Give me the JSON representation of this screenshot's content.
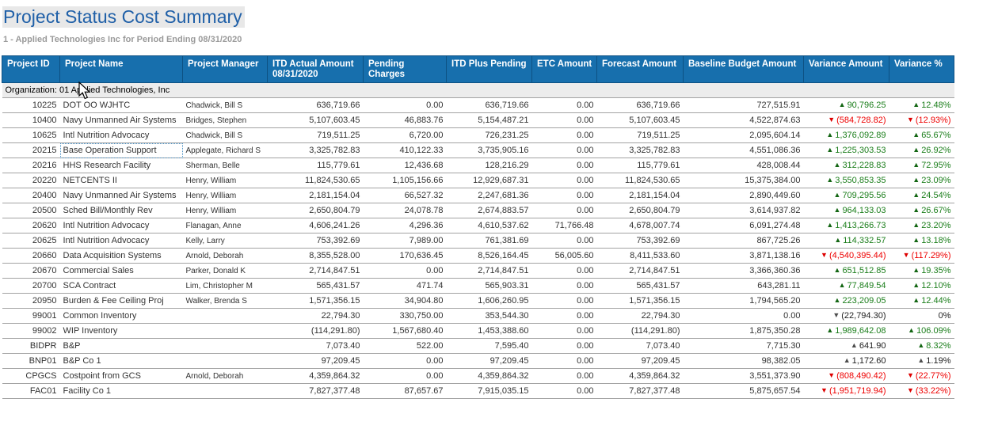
{
  "page": {
    "title": "Project Status Cost Summary",
    "subtitle": "1 - Applied Technologies Inc for Period Ending 08/31/2020"
  },
  "icons": {
    "up_arrow": "▲",
    "down_arrow": "▼",
    "mouse_cursor": "arrow-pointer"
  },
  "colors": {
    "header_bg": "#176fad",
    "positive": "#1b7e1b",
    "negative": "#ee0000",
    "neutral": "#222222",
    "title": "#2060a8"
  },
  "table": {
    "group_label": "Organization: 01 Applied Technologies, Inc",
    "columns": [
      {
        "key": "project-id",
        "label": "Project ID"
      },
      {
        "key": "project-name",
        "label": "Project Name"
      },
      {
        "key": "project-manager",
        "label": "Project Manager"
      },
      {
        "key": "itd-actual-amount",
        "label": "ITD Actual Amount\n08/31/2020"
      },
      {
        "key": "pending-charges",
        "label": "Pending Charges"
      },
      {
        "key": "itd-plus-pending",
        "label": "ITD Plus Pending"
      },
      {
        "key": "etc-amount",
        "label": "ETC Amount"
      },
      {
        "key": "forecast-amount",
        "label": "Forecast Amount"
      },
      {
        "key": "baseline-budget-amount",
        "label": "Baseline Budget Amount"
      },
      {
        "key": "variance-amount",
        "label": "Variance Amount"
      },
      {
        "key": "variance-pct",
        "label": "Variance %"
      }
    ],
    "rows": [
      {
        "id": "10225",
        "name": "DOT OO WJHTC",
        "manager": "Chadwick, Bill S",
        "itd_actual": "636,719.66",
        "pending": "0.00",
        "itd_plus_pending": "636,719.66",
        "etc": "0.00",
        "forecast": "636,719.66",
        "baseline": "727,515.91",
        "var_amt": {
          "arrow": "up",
          "value": "90,796.25",
          "color": "green"
        },
        "var_pct": {
          "arrow": "up",
          "value": "12.48%",
          "color": "green"
        }
      },
      {
        "id": "10400",
        "name": "Navy Unmanned Air Systems",
        "manager": "Bridges, Stephen",
        "itd_actual": "5,107,603.45",
        "pending": "46,883.76",
        "itd_plus_pending": "5,154,487.21",
        "etc": "0.00",
        "forecast": "5,107,603.45",
        "baseline": "4,522,874.63",
        "var_amt": {
          "arrow": "down",
          "value": "(584,728.82)",
          "color": "red"
        },
        "var_pct": {
          "arrow": "down",
          "value": "(12.93%)",
          "color": "red"
        }
      },
      {
        "id": "10625",
        "name": "Intl Nutrition Advocacy",
        "manager": "Chadwick, Bill S",
        "itd_actual": "719,511.25",
        "pending": "6,720.00",
        "itd_plus_pending": "726,231.25",
        "etc": "0.00",
        "forecast": "719,511.25",
        "baseline": "2,095,604.14",
        "var_amt": {
          "arrow": "up",
          "value": "1,376,092.89",
          "color": "green"
        },
        "var_pct": {
          "arrow": "up",
          "value": "65.67%",
          "color": "green"
        }
      },
      {
        "id": "20215",
        "name": "Base Operation Support",
        "name_focused": true,
        "manager": "Applegate, Richard S",
        "itd_actual": "3,325,782.83",
        "pending": "410,122.33",
        "itd_plus_pending": "3,735,905.16",
        "etc": "0.00",
        "forecast": "3,325,782.83",
        "baseline": "4,551,086.36",
        "var_amt": {
          "arrow": "up",
          "value": "1,225,303.53",
          "color": "green"
        },
        "var_pct": {
          "arrow": "up",
          "value": "26.92%",
          "color": "green"
        }
      },
      {
        "id": "20216",
        "name": "HHS Research Facility",
        "manager": "Sherman, Belle",
        "itd_actual": "115,779.61",
        "pending": "12,436.68",
        "itd_plus_pending": "128,216.29",
        "etc": "0.00",
        "forecast": "115,779.61",
        "baseline": "428,008.44",
        "var_amt": {
          "arrow": "up",
          "value": "312,228.83",
          "color": "green"
        },
        "var_pct": {
          "arrow": "up",
          "value": "72.95%",
          "color": "green"
        }
      },
      {
        "id": "20220",
        "name": "NETCENTS II",
        "manager": "Henry, William",
        "itd_actual": "11,824,530.65",
        "pending": "1,105,156.66",
        "itd_plus_pending": "12,929,687.31",
        "etc": "0.00",
        "forecast": "11,824,530.65",
        "baseline": "15,375,384.00",
        "var_amt": {
          "arrow": "up",
          "value": "3,550,853.35",
          "color": "green"
        },
        "var_pct": {
          "arrow": "up",
          "value": "23.09%",
          "color": "green"
        }
      },
      {
        "id": "20400",
        "name": "Navy Unmanned Air Systems",
        "manager": "Henry, William",
        "itd_actual": "2,181,154.04",
        "pending": "66,527.32",
        "itd_plus_pending": "2,247,681.36",
        "etc": "0.00",
        "forecast": "2,181,154.04",
        "baseline": "2,890,449.60",
        "var_amt": {
          "arrow": "up",
          "value": "709,295.56",
          "color": "green"
        },
        "var_pct": {
          "arrow": "up",
          "value": "24.54%",
          "color": "green"
        }
      },
      {
        "id": "20500",
        "name": "Sched Bill/Monthly Rev",
        "manager": "Henry, William",
        "itd_actual": "2,650,804.79",
        "pending": "24,078.78",
        "itd_plus_pending": "2,674,883.57",
        "etc": "0.00",
        "forecast": "2,650,804.79",
        "baseline": "3,614,937.82",
        "var_amt": {
          "arrow": "up",
          "value": "964,133.03",
          "color": "green"
        },
        "var_pct": {
          "arrow": "up",
          "value": "26.67%",
          "color": "green"
        }
      },
      {
        "id": "20620",
        "name": "Intl Nutrition Advocacy",
        "manager": "Flanagan, Anne",
        "itd_actual": "4,606,241.26",
        "pending": "4,296.36",
        "itd_plus_pending": "4,610,537.62",
        "etc": "71,766.48",
        "forecast": "4,678,007.74",
        "baseline": "6,091,274.48",
        "var_amt": {
          "arrow": "up",
          "value": "1,413,266.73",
          "color": "green"
        },
        "var_pct": {
          "arrow": "up",
          "value": "23.20%",
          "color": "green"
        }
      },
      {
        "id": "20625",
        "name": "Intl Nutrition Advocacy",
        "manager": "Kelly, Larry",
        "itd_actual": "753,392.69",
        "pending": "7,989.00",
        "itd_plus_pending": "761,381.69",
        "etc": "0.00",
        "forecast": "753,392.69",
        "baseline": "867,725.26",
        "var_amt": {
          "arrow": "up",
          "value": "114,332.57",
          "color": "green"
        },
        "var_pct": {
          "arrow": "up",
          "value": "13.18%",
          "color": "green"
        }
      },
      {
        "id": "20660",
        "name": "Data Acquisition Systems",
        "manager": "Arnold, Deborah",
        "itd_actual": "8,355,528.00",
        "pending": "170,636.45",
        "itd_plus_pending": "8,526,164.45",
        "etc": "56,005.60",
        "forecast": "8,411,533.60",
        "baseline": "3,871,138.16",
        "var_amt": {
          "arrow": "down",
          "value": "(4,540,395.44)",
          "color": "red"
        },
        "var_pct": {
          "arrow": "down",
          "value": "(117.29%)",
          "color": "red"
        }
      },
      {
        "id": "20670",
        "name": "Commercial Sales",
        "manager": "Parker, Donald K",
        "itd_actual": "2,714,847.51",
        "pending": "0.00",
        "itd_plus_pending": "2,714,847.51",
        "etc": "0.00",
        "forecast": "2,714,847.51",
        "baseline": "3,366,360.36",
        "var_amt": {
          "arrow": "up",
          "value": "651,512.85",
          "color": "green"
        },
        "var_pct": {
          "arrow": "up",
          "value": "19.35%",
          "color": "green"
        }
      },
      {
        "id": "20700",
        "name": "SCA Contract",
        "manager": "Lim, Christopher M",
        "itd_actual": "565,431.57",
        "pending": "471.74",
        "itd_plus_pending": "565,903.31",
        "etc": "0.00",
        "forecast": "565,431.57",
        "baseline": "643,281.11",
        "var_amt": {
          "arrow": "up",
          "value": "77,849.54",
          "color": "green"
        },
        "var_pct": {
          "arrow": "up",
          "value": "12.10%",
          "color": "green"
        }
      },
      {
        "id": "20950",
        "name": "Burden & Fee Ceiling Proj",
        "manager": "Walker, Brenda S",
        "itd_actual": "1,571,356.15",
        "pending": "34,904.80",
        "itd_plus_pending": "1,606,260.95",
        "etc": "0.00",
        "forecast": "1,571,356.15",
        "baseline": "1,794,565.20",
        "var_amt": {
          "arrow": "up",
          "value": "223,209.05",
          "color": "green"
        },
        "var_pct": {
          "arrow": "up",
          "value": "12.44%",
          "color": "green"
        }
      },
      {
        "id": "99001",
        "name": "Common Inventory",
        "manager": "",
        "itd_actual": "22,794.30",
        "pending": "330,750.00",
        "itd_plus_pending": "353,544.30",
        "etc": "0.00",
        "forecast": "22,794.30",
        "baseline": "0.00",
        "var_amt": {
          "arrow": "down",
          "value": "(22,794.30)",
          "color": "black"
        },
        "var_pct": {
          "arrow": "",
          "value": "0%",
          "color": "black"
        }
      },
      {
        "id": "99002",
        "name": "WIP Inventory",
        "manager": "",
        "itd_actual": "(114,291.80)",
        "pending": "1,567,680.40",
        "itd_plus_pending": "1,453,388.60",
        "etc": "0.00",
        "forecast": "(114,291.80)",
        "baseline": "1,875,350.28",
        "var_amt": {
          "arrow": "up",
          "value": "1,989,642.08",
          "color": "green"
        },
        "var_pct": {
          "arrow": "up",
          "value": "106.09%",
          "color": "green"
        }
      },
      {
        "id": "BIDPR",
        "name": "B&P",
        "manager": "",
        "itd_actual": "7,073.40",
        "pending": "522.00",
        "itd_plus_pending": "7,595.40",
        "etc": "0.00",
        "forecast": "7,073.40",
        "baseline": "7,715.30",
        "var_amt": {
          "arrow": "up",
          "value": "641.90",
          "color": "black"
        },
        "var_pct": {
          "arrow": "up",
          "value": "8.32%",
          "color": "green"
        }
      },
      {
        "id": "BNP01",
        "name": "B&P Co 1",
        "manager": "",
        "itd_actual": "97,209.45",
        "pending": "0.00",
        "itd_plus_pending": "97,209.45",
        "etc": "0.00",
        "forecast": "97,209.45",
        "baseline": "98,382.05",
        "var_amt": {
          "arrow": "up",
          "value": "1,172.60",
          "color": "black"
        },
        "var_pct": {
          "arrow": "up",
          "value": "1.19%",
          "color": "black"
        }
      },
      {
        "id": "CPGCS",
        "name": "Costpoint from GCS",
        "manager": "Arnold, Deborah",
        "itd_actual": "4,359,864.32",
        "pending": "0.00",
        "itd_plus_pending": "4,359,864.32",
        "etc": "0.00",
        "forecast": "4,359,864.32",
        "baseline": "3,551,373.90",
        "var_amt": {
          "arrow": "down",
          "value": "(808,490.42)",
          "color": "red"
        },
        "var_pct": {
          "arrow": "down",
          "value": "(22.77%)",
          "color": "red"
        }
      },
      {
        "id": "FAC01",
        "name": "Facility Co 1",
        "manager": "",
        "itd_actual": "7,827,377.48",
        "pending": "87,657.67",
        "itd_plus_pending": "7,915,035.15",
        "etc": "0.00",
        "forecast": "7,827,377.48",
        "baseline": "5,875,657.54",
        "var_amt": {
          "arrow": "down",
          "value": "(1,951,719.94)",
          "color": "red"
        },
        "var_pct": {
          "arrow": "down",
          "value": "(33.22%)",
          "color": "red"
        }
      }
    ]
  }
}
